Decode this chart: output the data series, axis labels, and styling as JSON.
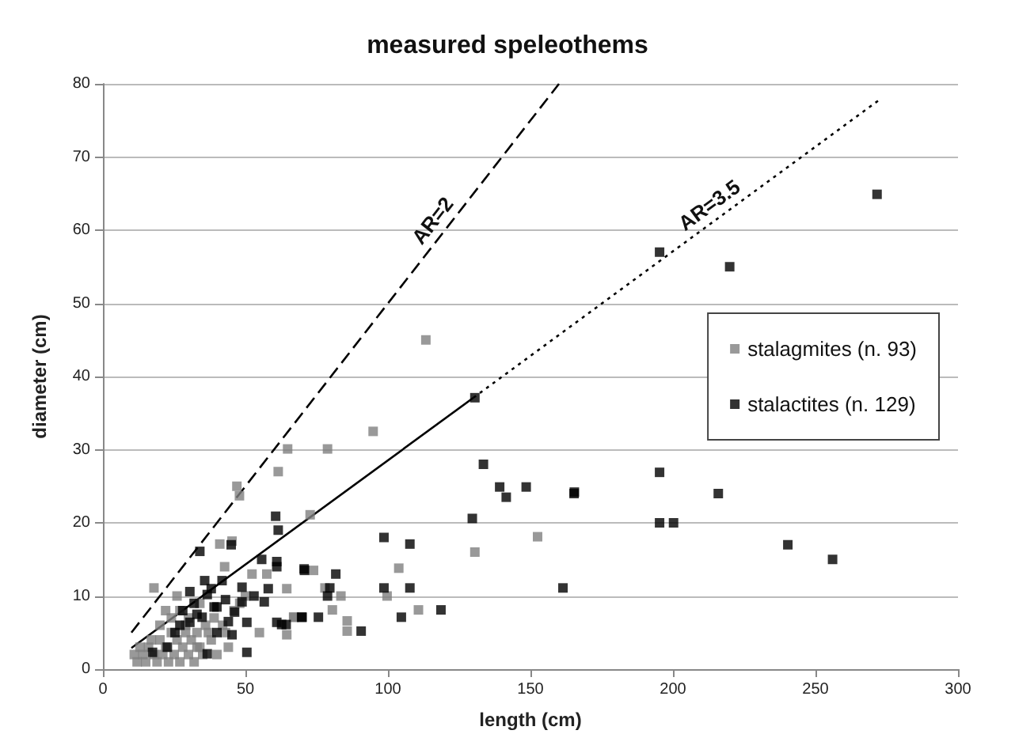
{
  "chart_data": {
    "type": "scatter",
    "title": "measured speleothems",
    "xlabel": "length (cm)",
    "ylabel": "diameter (cm)",
    "xlim": [
      0,
      300
    ],
    "xticks": [
      0,
      50,
      100,
      150,
      200,
      250,
      300
    ],
    "ylim": [
      0,
      80
    ],
    "yticks": [
      0,
      10,
      20,
      30,
      40,
      50,
      60,
      70,
      80
    ],
    "grid": "y",
    "legend": "right",
    "marker": "square",
    "annotations": [
      {
        "text": "AR=2",
        "x": 120,
        "y": 60
      },
      {
        "text": "AR=3.5",
        "x": 216,
        "y": 61.7
      }
    ],
    "series": [
      {
        "name": "stalagmites (n. 93)",
        "color": "#808080",
        "x": [
          113.3,
          94.8,
          64.8,
          78.8,
          61.5,
          47.9,
          47,
          72.7,
          45.3,
          41,
          42.7,
          52.3,
          57.5,
          17.9,
          64.5,
          67,
          54.9,
          64.5,
          130.5,
          152.5,
          103.8,
          73.9,
          77.9,
          83.5,
          99.7,
          80.5,
          110.7,
          85.7,
          85.7,
          66.9,
          12,
          14,
          15,
          16,
          18,
          19,
          20,
          21,
          22,
          23,
          24,
          25,
          26,
          27,
          28,
          29,
          30,
          31,
          32,
          33,
          34,
          35,
          36,
          38,
          40,
          42,
          44,
          46,
          11,
          13,
          17,
          20,
          24,
          27,
          30,
          34,
          37,
          22,
          26,
          29,
          33,
          39,
          43,
          48,
          50
        ],
        "values": [
          45,
          32.5,
          30.1,
          30.1,
          27,
          23.7,
          25,
          21.1,
          17.5,
          17.1,
          14,
          13,
          13,
          11.1,
          11,
          7.1,
          5,
          4.7,
          16,
          18.1,
          13.8,
          13.5,
          11.1,
          10,
          10,
          8.1,
          8.1,
          6.6,
          5.2,
          7.1,
          1,
          2,
          1,
          3,
          2,
          1,
          4,
          2,
          3,
          1,
          5,
          2,
          4,
          1,
          3,
          6,
          2,
          4,
          1,
          5,
          3,
          2,
          6,
          4,
          2,
          6,
          3,
          8,
          2,
          3,
          4,
          6,
          7,
          8,
          7,
          9,
          5,
          8,
          10,
          5,
          3,
          7,
          5,
          9,
          10
        ]
      },
      {
        "name": "stalactites (n. 129)",
        "color": "#000000",
        "x": [
          271.6,
          195.3,
          219.9,
          130.5,
          133.5,
          139.2,
          141.5,
          148.5,
          165.4,
          195.3,
          165.3,
          215.9,
          195.3,
          200.2,
          240.3,
          256,
          129.6,
          98.6,
          107.7,
          70.7,
          81.7,
          79.6,
          78.8,
          98.6,
          107.7,
          161.4,
          64.3,
          69.9,
          75.6,
          104.7,
          118.6,
          90.6,
          60.6,
          61.5,
          34,
          55.7,
          61,
          61,
          70.6,
          35.7,
          41.8,
          30.5,
          36.6,
          48.8,
          48.8,
          56.6,
          40,
          46.2,
          34.8,
          30.5,
          50.5,
          61,
          62.7,
          69.7,
          25.3,
          40,
          17.4,
          22.6,
          36.6,
          50.5,
          45.3,
          45,
          28,
          32,
          38,
          43,
          53,
          58,
          27,
          33,
          39,
          44
        ],
        "values": [
          64.9,
          57,
          55,
          37.1,
          28,
          24.9,
          23.5,
          24.9,
          24.2,
          26.9,
          24,
          24,
          20,
          20,
          17,
          15,
          20.6,
          18,
          17.1,
          13.5,
          13,
          11.1,
          10,
          11.1,
          11.1,
          11.1,
          6.1,
          7.1,
          7.1,
          7.1,
          8.1,
          5.2,
          20.9,
          19,
          16.1,
          15,
          14.7,
          14,
          13.7,
          12.1,
          12.1,
          10.6,
          10.2,
          11.2,
          9.2,
          9.2,
          8.5,
          7.8,
          7.1,
          6.4,
          6.4,
          6.4,
          6.1,
          7.1,
          5,
          5,
          2.3,
          3,
          2.1,
          2.3,
          4.7,
          17,
          8,
          9,
          11,
          9.5,
          10,
          11,
          6,
          7.5,
          8.5,
          6.5
        ]
      },
      {
        "type": "line",
        "color": "#000000",
        "line_style": "dashed",
        "marker": "none",
        "x": [
          10,
          160
        ],
        "values": [
          5,
          80
        ]
      },
      {
        "type": "line",
        "color": "#000000",
        "line_style": "solid",
        "marker": "none",
        "x": [
          10,
          130
        ],
        "values": [
          2.9,
          37.1
        ]
      },
      {
        "type": "line",
        "color": "#000000",
        "line_style": "dotted",
        "marker": "none",
        "x": [
          130,
          272
        ],
        "values": [
          37.1,
          77.7
        ]
      }
    ]
  }
}
